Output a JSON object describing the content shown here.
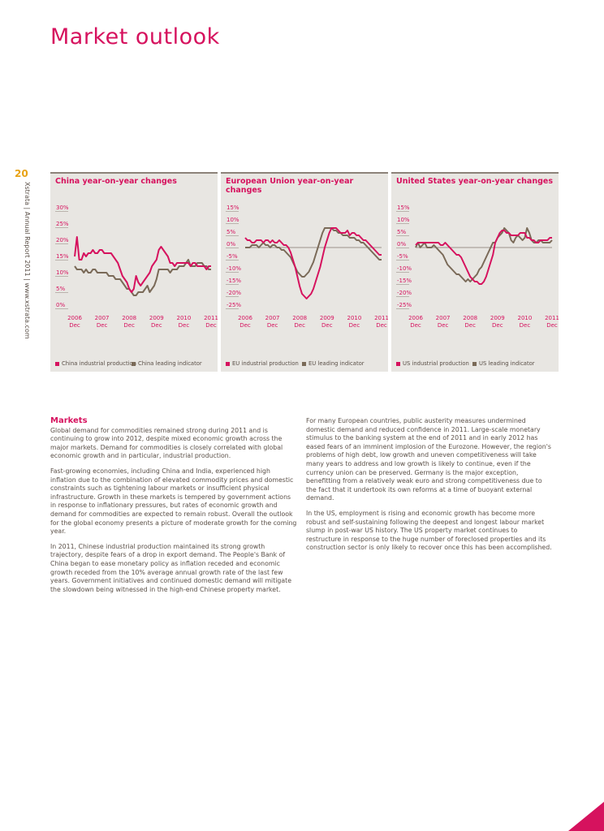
{
  "page": {
    "title": "Market outlook",
    "page_number": "20",
    "side_text": "Xstrata | Annual Report 2011 | www.xstrata.com"
  },
  "colors": {
    "industrial": "#d6125e",
    "leading": "#7a6a58",
    "zero_line": "#9b928a"
  },
  "charts": {
    "china": {
      "legend": {
        "industrial": "China industrial production",
        "leading": "China leading indicator"
      }
    },
    "eu": {
      "legend": {
        "industrial": "EU industrial production",
        "leading": "EU leading indicator"
      }
    },
    "us": {
      "legend": {
        "industrial": "US industrial production",
        "leading": "US leading indicator"
      }
    }
  },
  "chart_data": [
    {
      "type": "line",
      "title": "China year-on-year changes",
      "yticks": [
        "30%",
        "25%",
        "20%",
        "15%",
        "10%",
        "5%",
        "0%"
      ],
      "ylim": [
        0,
        30
      ],
      "xticks": [
        [
          "2006",
          "Dec"
        ],
        [
          "2007",
          "Dec"
        ],
        [
          "2008",
          "Dec"
        ],
        [
          "2009",
          "Dec"
        ],
        [
          "2010",
          "Dec"
        ],
        [
          "2011",
          "Dec"
        ]
      ],
      "xlim": [
        0,
        60
      ],
      "series": [
        {
          "name": "China industrial production",
          "values": [
            16,
            22,
            15,
            15,
            17,
            16,
            17,
            17,
            18,
            17,
            17,
            18,
            18,
            17,
            17,
            17,
            17,
            16,
            15,
            14,
            12,
            10,
            9,
            8,
            6,
            5,
            6,
            10,
            8,
            7,
            8,
            9,
            10,
            11,
            13,
            14,
            15,
            18,
            19,
            18,
            17,
            16,
            14,
            14,
            13,
            14,
            14,
            14,
            14,
            14,
            14,
            13,
            14,
            14,
            13,
            13,
            13,
            13,
            12,
            13,
            13
          ]
        },
        {
          "name": "China leading indicator",
          "values": [
            13,
            12,
            12,
            12,
            11,
            12,
            11,
            11,
            12,
            12,
            11,
            11,
            11,
            11,
            11,
            10,
            10,
            10,
            9,
            9,
            9,
            8,
            7,
            6,
            6,
            5,
            4,
            4,
            5,
            5,
            5,
            6,
            7,
            5,
            6,
            7,
            9,
            12,
            12,
            12,
            12,
            12,
            11,
            12,
            12,
            12,
            13,
            13,
            13,
            14,
            15,
            13,
            13,
            13,
            14,
            14,
            14,
            13,
            13,
            12,
            12
          ]
        }
      ]
    },
    {
      "type": "line",
      "title": "European Union year-on-year changes",
      "yticks": [
        "15%",
        "10%",
        "5%",
        "0%",
        "-5%",
        "-10%",
        "-15%",
        "-20%",
        "-25%"
      ],
      "ylim": [
        -25,
        15
      ],
      "xticks": [
        [
          "2006",
          "Dec"
        ],
        [
          "2007",
          "Dec"
        ],
        [
          "2008",
          "Dec"
        ],
        [
          "2009",
          "Dec"
        ],
        [
          "2010",
          "Dec"
        ],
        [
          "2011",
          "Dec"
        ]
      ],
      "xlim": [
        0,
        60
      ],
      "series": [
        {
          "name": "EU industrial production",
          "values": [
            4,
            3,
            3,
            2,
            2,
            3,
            3,
            3,
            2,
            3,
            3,
            2,
            3,
            2,
            2,
            3,
            2,
            1,
            1,
            0,
            -2,
            -5,
            -8,
            -12,
            -16,
            -19,
            -20,
            -21,
            -20,
            -19,
            -17,
            -14,
            -11,
            -8,
            -4,
            0,
            3,
            6,
            8,
            8,
            8,
            7,
            6,
            6,
            6,
            7,
            5,
            6,
            6,
            5,
            5,
            4,
            3,
            3,
            2,
            1,
            0,
            -1,
            -2,
            -3,
            -3
          ]
        },
        {
          "name": "EU leading indicator",
          "values": [
            0,
            0,
            0,
            1,
            1,
            1,
            0,
            1,
            2,
            1,
            1,
            0,
            1,
            1,
            0,
            0,
            -1,
            -1,
            -2,
            -3,
            -4,
            -6,
            -8,
            -10,
            -11,
            -12,
            -12,
            -11,
            -10,
            -8,
            -6,
            -3,
            0,
            3,
            6,
            8,
            8,
            8,
            8,
            7,
            7,
            6,
            6,
            5,
            5,
            5,
            4,
            4,
            4,
            3,
            3,
            2,
            2,
            1,
            0,
            -1,
            -2,
            -3,
            -4,
            -5,
            -5
          ]
        }
      ]
    },
    {
      "type": "line",
      "title": "United States year-on-year changes",
      "yticks": [
        "15%",
        "10%",
        "5%",
        "0%",
        "-5%",
        "-10%",
        "-15%",
        "-20%",
        "-25%"
      ],
      "ylim": [
        -25,
        15
      ],
      "xticks": [
        [
          "2006",
          "Dec"
        ],
        [
          "2007",
          "Dec"
        ],
        [
          "2008",
          "Dec"
        ],
        [
          "2009",
          "Dec"
        ],
        [
          "2010",
          "Dec"
        ],
        [
          "2011",
          "Dec"
        ]
      ],
      "xlim": [
        0,
        60
      ],
      "series": [
        {
          "name": "US industrial production",
          "values": [
            1,
            2,
            2,
            2,
            2,
            2,
            2,
            2,
            2,
            2,
            2,
            1,
            1,
            2,
            1,
            0,
            -1,
            -2,
            -3,
            -3,
            -4,
            -6,
            -8,
            -10,
            -12,
            -13,
            -14,
            -14,
            -15,
            -15,
            -14,
            -12,
            -9,
            -6,
            -3,
            2,
            4,
            6,
            7,
            7,
            6,
            6,
            5,
            5,
            5,
            5,
            6,
            6,
            6,
            4,
            4,
            3,
            3,
            2,
            2,
            3,
            3,
            3,
            3,
            4,
            4
          ]
        },
        {
          "name": "US leading indicator",
          "values": [
            0,
            2,
            0,
            1,
            2,
            0,
            0,
            0,
            1,
            0,
            -1,
            -2,
            -3,
            -5,
            -7,
            -8,
            -9,
            -10,
            -11,
            -11,
            -12,
            -13,
            -14,
            -13,
            -14,
            -13,
            -12,
            -11,
            -9,
            -8,
            -6,
            -4,
            -2,
            0,
            2,
            2,
            4,
            5,
            6,
            8,
            7,
            6,
            3,
            2,
            4,
            5,
            4,
            3,
            4,
            8,
            6,
            3,
            2,
            2,
            3,
            3,
            2,
            2,
            2,
            2,
            3
          ]
        }
      ]
    }
  ],
  "markets": {
    "heading": "Markets",
    "col1": [
      "Global demand for commodities remained strong during 2011 and is continuing to grow into 2012, despite mixed economic growth across the major markets. Demand for commodities is closely correlated with global economic growth and in particular, industrial production.",
      "Fast-growing economies, including China and India, experienced high inflation due to the combination of elevated commodity prices and domestic constraints such as tightening labour markets or insufficient physical infrastructure. Growth in these markets is tempered by government actions in response to inflationary pressures, but rates of economic growth and demand for commodities are expected to remain robust. Overall the outlook for the global economy presents a picture of moderate growth for the coming year.",
      "In 2011, Chinese industrial production maintained its strong growth trajectory, despite fears of a drop in export demand. The People's Bank of China began to ease monetary policy as inflation receded and economic growth receded from the 10% average annual growth rate of the last few years. Government initiatives and continued domestic demand will mitigate the slowdown being witnessed in the high-end Chinese property market."
    ],
    "col2": [
      "For many European countries, public austerity measures undermined domestic demand and reduced confidence in 2011. Large-scale monetary stimulus to the banking system at the end of 2011 and in early 2012 has eased fears of an imminent implosion of the Eurozone. However, the region's problems of high debt, low growth and uneven competitiveness will take many years to address and low growth is likely to continue, even if the currency union can be preserved. Germany is the major exception, benefitting from a relatively weak euro and strong competitiveness due to the fact that it undertook its own reforms at a time of buoyant external demand.",
      "In the US, employment is rising and economic growth has become more robust and self-sustaining following the deepest and longest labour market slump in post-war US history. The US property market continues to restructure in response to the huge number of foreclosed properties and its construction sector is only likely to recover once this has been accomplished."
    ]
  }
}
